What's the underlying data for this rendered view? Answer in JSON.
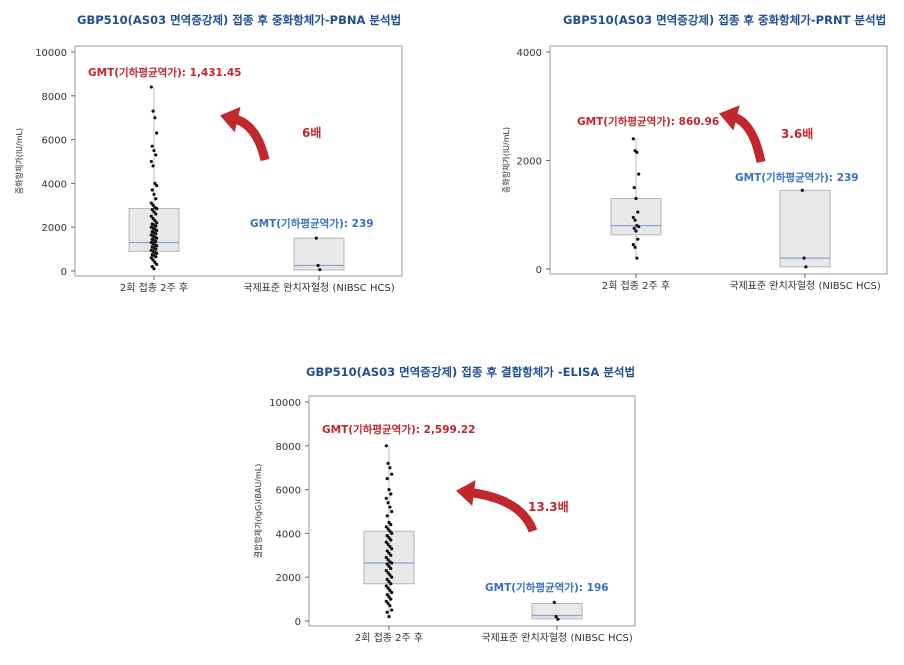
{
  "charts": [
    {
      "title": "GBP510(AS03 면역증강제) 접종 후 중화항체가-PBNA 분석법",
      "ylabel": "중화항체가(IU/mL)",
      "yticks": [
        "0",
        "2000",
        "4000",
        "6000",
        "8000",
        "10000"
      ],
      "categories": [
        "2회 접종 2주 후",
        "국제표준 완치자혈청 (NIBSC HCS)"
      ],
      "gmt_main": "GMT(기하평균역가): 1,431.45",
      "gmt_ref": "GMT(기하평균역가): 239",
      "fold": "6배"
    },
    {
      "title": "GBP510(AS03 면역증강제) 접종 후 중화항체가-PRNT 분석법",
      "ylabel": "중화항체가(IU/mL)",
      "yticks": [
        "0",
        "2000",
        "4000"
      ],
      "categories": [
        "2회 접종 2주 후",
        "국제표준 완치자혈청 (NIBSC HCS)"
      ],
      "gmt_main": "GMT(기하평균역가): 860.96",
      "gmt_ref": "GMT(기하평균역가): 239",
      "fold": "3.6배"
    },
    {
      "title": "GBP510(AS03 면역증강제) 접종 후 결합항체가 -ELISA 분석법",
      "ylabel": "결합항체가(IgG)(BAU/mL)",
      "yticks": [
        "0",
        "2000",
        "4000",
        "6000",
        "8000",
        "10000"
      ],
      "categories": [
        "2회 접종 2주 후",
        "국제표준 완치자혈청 (NIBSC HCS)"
      ],
      "gmt_main": "GMT(기하평균역가): 2,599.22",
      "gmt_ref": "GMT(기하평균역가): 196",
      "fold": "13.3배"
    }
  ],
  "colors": {
    "title": "#1f4e96",
    "gmt_main": "#c0282d",
    "gmt_ref": "#3a6fc4",
    "arrow": "#c0282d",
    "box_fill": "#e8e8e8",
    "median": "#8aa3cf"
  },
  "chart_data": [
    {
      "type": "box",
      "ylim": [
        0,
        10000
      ],
      "categories": [
        "2회 접종 2주 후",
        "국제표준 완치자혈청 (NIBSC HCS)"
      ],
      "boxes": [
        {
          "q1": 900,
          "median": 1300,
          "q3": 2850,
          "min": 80,
          "max": 8400
        },
        {
          "q1": 50,
          "median": 250,
          "q3": 1500,
          "min": 20,
          "max": 1500
        }
      ],
      "points": [
        [
          8400,
          7300,
          7000,
          6300,
          5700,
          5500,
          5300,
          5000,
          4800,
          4000,
          3900,
          3700,
          3500,
          3300,
          3100,
          3000,
          2900,
          2850,
          2800,
          2700,
          2600,
          2500,
          2400,
          2300,
          2200,
          2150,
          2100,
          2050,
          2000,
          1950,
          1900,
          1850,
          1800,
          1750,
          1700,
          1650,
          1600,
          1550,
          1500,
          1450,
          1400,
          1350,
          1300,
          1250,
          1200,
          1150,
          1100,
          1050,
          1000,
          950,
          900,
          850,
          800,
          750,
          700,
          650,
          600,
          500,
          400,
          300,
          200,
          100
        ],
        [
          1500,
          250,
          60
        ]
      ],
      "gmt": [
        1431.45,
        239
      ]
    },
    {
      "type": "box",
      "ylim": [
        0,
        4000
      ],
      "categories": [
        "2회 접종 2주 후",
        "국제표준 완치자혈청 (NIBSC HCS)"
      ],
      "boxes": [
        {
          "q1": 630,
          "median": 800,
          "q3": 1300,
          "min": 200,
          "max": 2400
        },
        {
          "q1": 40,
          "median": 200,
          "q3": 1450,
          "min": 30,
          "max": 1450
        }
      ],
      "points": [
        [
          2400,
          2180,
          2150,
          1750,
          1500,
          1300,
          1050,
          950,
          900,
          800,
          780,
          750,
          700,
          550,
          450,
          400,
          200
        ],
        [
          1450,
          200,
          40
        ]
      ],
      "gmt": [
        860.96,
        239
      ]
    },
    {
      "type": "box",
      "ylim": [
        0,
        10000
      ],
      "categories": [
        "2회 접종 2주 후",
        "국제표준 완치자혈청 (NIBSC HCS)"
      ],
      "boxes": [
        {
          "q1": 1700,
          "median": 2650,
          "q3": 4100,
          "min": 200,
          "max": 8000
        },
        {
          "q1": 100,
          "median": 250,
          "q3": 800,
          "min": 50,
          "max": 850
        }
      ],
      "points": [
        [
          8000,
          7200,
          7000,
          6700,
          6500,
          6000,
          5800,
          5600,
          5400,
          5200,
          5000,
          4800,
          4500,
          4400,
          4300,
          4200,
          4100,
          4000,
          3900,
          3800,
          3700,
          3600,
          3500,
          3400,
          3300,
          3200,
          3100,
          3000,
          2900,
          2800,
          2700,
          2650,
          2600,
          2500,
          2400,
          2300,
          2200,
          2100,
          2000,
          1900,
          1800,
          1700,
          1600,
          1500,
          1400,
          1300,
          1200,
          1100,
          1000,
          900,
          800,
          700,
          500,
          400,
          200
        ],
        [
          850,
          200,
          80
        ]
      ],
      "gmt": [
        2599.22,
        196
      ]
    }
  ]
}
